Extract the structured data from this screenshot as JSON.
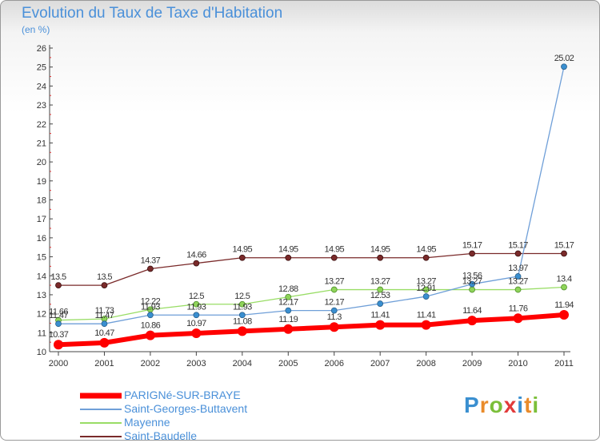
{
  "title": "Evolution du Taux de Taxe d'Habitation",
  "unit_label": "(en %)",
  "logo_text": "Proxiti",
  "chart_data": {
    "type": "line",
    "title": "Evolution du Taux de Taxe d'Habitation",
    "subtitle": "(en %)",
    "x": [
      "2000",
      "2001",
      "2002",
      "2003",
      "2004",
      "2005",
      "2006",
      "2007",
      "2008",
      "2009",
      "2010",
      "2011"
    ],
    "ylim": [
      10,
      26
    ],
    "yticks": [
      10,
      11,
      12,
      13,
      14,
      15,
      16,
      17,
      18,
      19,
      20,
      21,
      22,
      23,
      24,
      25,
      26
    ],
    "grid": false,
    "legend_position": "bottom-left",
    "series": [
      {
        "name": "PARIGNé-SUR-BRAYE",
        "color": "#ff0000",
        "values": [
          10.37,
          10.47,
          10.86,
          10.97,
          11.08,
          11.19,
          11.3,
          11.41,
          11.41,
          11.64,
          11.76,
          11.94
        ]
      },
      {
        "name": "Saint-Georges-Buttavent",
        "color": "#6f9fd8",
        "values": [
          11.47,
          11.47,
          11.93,
          11.93,
          11.93,
          12.17,
          12.17,
          12.53,
          12.91,
          13.56,
          13.97,
          25.02
        ]
      },
      {
        "name": "Mayenne",
        "color": "#99dd66",
        "values": [
          11.66,
          11.73,
          12.22,
          12.5,
          12.5,
          12.88,
          13.27,
          13.27,
          13.27,
          13.27,
          13.27,
          13.4
        ]
      },
      {
        "name": "Saint-Baudelle",
        "color": "#7a2a2a",
        "values": [
          13.5,
          13.5,
          14.37,
          14.66,
          14.95,
          14.95,
          14.95,
          14.95,
          14.95,
          15.17,
          15.17,
          15.17
        ]
      }
    ],
    "data_labels": {
      "PARIGNé-SUR-BRAYE": [
        "10.37",
        "10.47",
        "10.86",
        "10.97",
        "11.08",
        "11.19",
        "11.3",
        "11.41",
        "11.41",
        "11.64",
        "11.76",
        "11.94"
      ],
      "Saint-Georges-Buttavent": [
        "11.47",
        "11.47",
        "11.93",
        "11.93",
        "11.93",
        "12.17",
        "12.17",
        "12.53",
        "12.91",
        "13.56",
        "13.97",
        "25.02"
      ],
      "Mayenne": [
        "11.66",
        "11.73",
        "12.22",
        "12.5",
        "12.5",
        "12.88",
        "13.27",
        "13.27",
        "13.27",
        "13.27",
        "13.27",
        "13.4"
      ],
      "Saint-Baudelle": [
        "13.5",
        "13.5",
        "14.37",
        "14.66",
        "14.95",
        "14.95",
        "14.95",
        "14.95",
        "14.95",
        "15.17",
        "15.17",
        "15.17"
      ]
    }
  }
}
